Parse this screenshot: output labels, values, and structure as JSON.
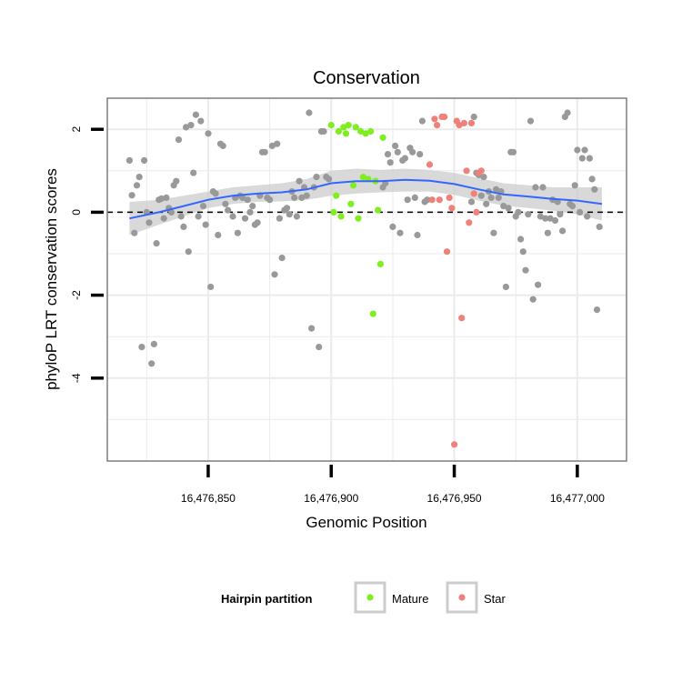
{
  "chart_data": {
    "type": "scatter",
    "title": "Conservation",
    "xlabel": "Genomic Position",
    "ylabel": "phyloP LRT conservation scores",
    "xlim": [
      16476809,
      16477020
    ],
    "ylim": [
      -6.0,
      2.75
    ],
    "x_ticks": [
      16476850,
      16476900,
      16476950,
      16477000
    ],
    "x_tick_labels": [
      "16,476,850",
      "16,476,900",
      "16,476,950",
      "16,477,000"
    ],
    "y_ticks": [
      -4,
      -2,
      0,
      2
    ],
    "y_tick_labels": [
      "-4",
      "-2",
      "0",
      "2"
    ],
    "reference_line": {
      "y": 0,
      "style": "dashed"
    },
    "grid": true,
    "legend": {
      "title": "Hairpin partition",
      "position": "bottom",
      "entries": [
        "Mature",
        "Star"
      ]
    },
    "colors": {
      "other": "#999999",
      "Mature": "#7FEE1F",
      "Star": "#F0807A",
      "smooth": "#3366FF",
      "band": "#CCCCCC",
      "grid": "#EBEBEB",
      "panel_border": "#7F7F7F"
    },
    "series": [
      {
        "name": "Other",
        "color": "#999999",
        "points": [
          [
            16476818,
            1.25
          ],
          [
            16476819,
            0.41
          ],
          [
            16476820,
            -0.5
          ],
          [
            16476821,
            0.65
          ],
          [
            16476822,
            0.85
          ],
          [
            16476823,
            -3.25
          ],
          [
            16476824,
            1.25
          ],
          [
            16476825,
            0.0
          ],
          [
            16476826,
            -0.25
          ],
          [
            16476827,
            -3.65
          ],
          [
            16476828,
            -3.18
          ],
          [
            16476829,
            -0.75
          ],
          [
            16476830,
            0.3
          ],
          [
            16476831,
            0.33
          ],
          [
            16476832,
            -0.15
          ],
          [
            16476833,
            0.35
          ],
          [
            16476834,
            0.1
          ],
          [
            16476835,
            0.0
          ],
          [
            16476836,
            0.65
          ],
          [
            16476837,
            0.75
          ],
          [
            16476838,
            1.75
          ],
          [
            16476839,
            -0.1
          ],
          [
            16476840,
            -0.35
          ],
          [
            16476841,
            2.05
          ],
          [
            16476842,
            -0.95
          ],
          [
            16476843,
            2.1
          ],
          [
            16476844,
            0.95
          ],
          [
            16476845,
            2.35
          ],
          [
            16476846,
            -0.1
          ],
          [
            16476847,
            2.2
          ],
          [
            16476848,
            0.15
          ],
          [
            16476849,
            -0.3
          ],
          [
            16476850,
            1.9
          ],
          [
            16476851,
            -1.8
          ],
          [
            16476852,
            0.5
          ],
          [
            16476853,
            0.45
          ],
          [
            16476854,
            -0.55
          ],
          [
            16476855,
            1.65
          ],
          [
            16476856,
            1.6
          ],
          [
            16476857,
            0.2
          ],
          [
            16476858,
            0.05
          ],
          [
            16476860,
            -0.1
          ],
          [
            16476861,
            0.35
          ],
          [
            16476862,
            -0.5
          ],
          [
            16476863,
            0.4
          ],
          [
            16476864,
            0.35
          ],
          [
            16476865,
            -0.15
          ],
          [
            16476866,
            0.3
          ],
          [
            16476867,
            0.0
          ],
          [
            16476868,
            0.15
          ],
          [
            16476869,
            -0.3
          ],
          [
            16476870,
            -0.25
          ],
          [
            16476871,
            0.4
          ],
          [
            16476872,
            1.45
          ],
          [
            16476873,
            1.45
          ],
          [
            16476874,
            0.35
          ],
          [
            16476875,
            0.3
          ],
          [
            16476876,
            1.6
          ],
          [
            16476877,
            -1.5
          ],
          [
            16476878,
            1.65
          ],
          [
            16476879,
            -0.15
          ],
          [
            16476880,
            -1.1
          ],
          [
            16476881,
            0.05
          ],
          [
            16476882,
            0.1
          ],
          [
            16476883,
            -0.05
          ],
          [
            16476884,
            0.5
          ],
          [
            16476885,
            0.35
          ],
          [
            16476886,
            -0.1
          ],
          [
            16476887,
            0.75
          ],
          [
            16476888,
            0.35
          ],
          [
            16476889,
            0.6
          ],
          [
            16476890,
            0.4
          ],
          [
            16476891,
            2.4
          ],
          [
            16476892,
            -2.8
          ],
          [
            16476893,
            0.6
          ],
          [
            16476894,
            0.85
          ],
          [
            16476895,
            -3.25
          ],
          [
            16476896,
            1.95
          ],
          [
            16476897,
            1.95
          ],
          [
            16476898,
            0.85
          ],
          [
            16476899,
            0.8
          ],
          [
            16476921,
            0.6
          ],
          [
            16476922,
            0.7
          ],
          [
            16476923,
            1.4
          ],
          [
            16476924,
            1.2
          ],
          [
            16476925,
            -0.35
          ],
          [
            16476926,
            1.6
          ],
          [
            16476927,
            1.45
          ],
          [
            16476928,
            -0.5
          ],
          [
            16476929,
            1.25
          ],
          [
            16476930,
            1.3
          ],
          [
            16476931,
            0.3
          ],
          [
            16476932,
            1.55
          ],
          [
            16476933,
            1.45
          ],
          [
            16476934,
            0.35
          ],
          [
            16476935,
            -0.55
          ],
          [
            16476936,
            1.4
          ],
          [
            16476937,
            2.2
          ],
          [
            16476938,
            0.25
          ],
          [
            16476939,
            0.3
          ],
          [
            16476957,
            0.25
          ],
          [
            16476958,
            2.3
          ],
          [
            16476959,
            0.95
          ],
          [
            16476960,
            0.9
          ],
          [
            16476961,
            0.4
          ],
          [
            16476962,
            0.85
          ],
          [
            16476963,
            0.2
          ],
          [
            16476964,
            0.5
          ],
          [
            16476965,
            0.35
          ],
          [
            16476966,
            -0.5
          ],
          [
            16476967,
            0.55
          ],
          [
            16476968,
            0.35
          ],
          [
            16476969,
            0.5
          ],
          [
            16476970,
            0.15
          ],
          [
            16476971,
            -1.8
          ],
          [
            16476972,
            0.1
          ],
          [
            16476973,
            1.45
          ],
          [
            16476974,
            1.45
          ],
          [
            16476975,
            -0.1
          ],
          [
            16476976,
            0.0
          ],
          [
            16476977,
            -0.65
          ],
          [
            16476978,
            -0.95
          ],
          [
            16476979,
            -1.4
          ],
          [
            16476980,
            -0.05
          ],
          [
            16476981,
            2.2
          ],
          [
            16476982,
            -2.1
          ],
          [
            16476983,
            0.6
          ],
          [
            16476984,
            -1.75
          ],
          [
            16476985,
            -0.1
          ],
          [
            16476986,
            0.6
          ],
          [
            16476987,
            -0.15
          ],
          [
            16476988,
            -0.5
          ],
          [
            16476989,
            -0.15
          ],
          [
            16476990,
            0.3
          ],
          [
            16476991,
            -0.2
          ],
          [
            16476992,
            0.25
          ],
          [
            16476993,
            -0.05
          ],
          [
            16476994,
            -0.45
          ],
          [
            16476995,
            2.3
          ],
          [
            16476996,
            2.4
          ],
          [
            16476997,
            0.2
          ],
          [
            16476998,
            0.15
          ],
          [
            16476999,
            0.65
          ],
          [
            16477000,
            1.5
          ],
          [
            16477001,
            0.0
          ],
          [
            16477002,
            1.3
          ],
          [
            16477003,
            1.5
          ],
          [
            16477004,
            -0.1
          ],
          [
            16477005,
            1.3
          ],
          [
            16477006,
            0.8
          ],
          [
            16477007,
            0.55
          ],
          [
            16477008,
            -2.35
          ],
          [
            16477009,
            -0.35
          ]
        ]
      },
      {
        "name": "Mature",
        "color": "#7FEE1F",
        "points": [
          [
            16476900,
            2.1
          ],
          [
            16476901,
            0.0
          ],
          [
            16476902,
            0.4
          ],
          [
            16476903,
            1.95
          ],
          [
            16476904,
            -0.1
          ],
          [
            16476905,
            2.05
          ],
          [
            16476906,
            1.9
          ],
          [
            16476907,
            2.1
          ],
          [
            16476908,
            0.2
          ],
          [
            16476909,
            0.65
          ],
          [
            16476910,
            2.05
          ],
          [
            16476911,
            -0.15
          ],
          [
            16476912,
            1.95
          ],
          [
            16476913,
            0.85
          ],
          [
            16476914,
            1.9
          ],
          [
            16476915,
            0.8
          ],
          [
            16476916,
            1.95
          ],
          [
            16476917,
            -2.45
          ],
          [
            16476918,
            0.75
          ],
          [
            16476919,
            0.05
          ],
          [
            16476920,
            -1.25
          ],
          [
            16476921,
            1.8
          ]
        ]
      },
      {
        "name": "Star",
        "color": "#F0807A",
        "points": [
          [
            16476940,
            1.15
          ],
          [
            16476941,
            0.3
          ],
          [
            16476942,
            2.25
          ],
          [
            16476943,
            2.1
          ],
          [
            16476944,
            0.3
          ],
          [
            16476945,
            2.3
          ],
          [
            16476946,
            2.3
          ],
          [
            16476947,
            -0.95
          ],
          [
            16476948,
            0.35
          ],
          [
            16476949,
            0.1
          ],
          [
            16476950,
            -5.6
          ],
          [
            16476951,
            2.2
          ],
          [
            16476952,
            2.1
          ],
          [
            16476953,
            -2.55
          ],
          [
            16476954,
            2.15
          ],
          [
            16476955,
            1.0
          ],
          [
            16476956,
            -0.25
          ],
          [
            16476957,
            2.15
          ],
          [
            16476958,
            0.45
          ],
          [
            16476959,
            0.0
          ],
          [
            16476960,
            0.95
          ],
          [
            16476961,
            1.0
          ]
        ]
      }
    ],
    "smooth": {
      "color": "#3366FF",
      "points": [
        [
          16476818,
          -0.15
        ],
        [
          16476830,
          0.0
        ],
        [
          16476840,
          0.15
        ],
        [
          16476850,
          0.3
        ],
        [
          16476860,
          0.4
        ],
        [
          16476870,
          0.45
        ],
        [
          16476880,
          0.48
        ],
        [
          16476890,
          0.55
        ],
        [
          16476900,
          0.7
        ],
        [
          16476910,
          0.75
        ],
        [
          16476920,
          0.75
        ],
        [
          16476930,
          0.78
        ],
        [
          16476940,
          0.76
        ],
        [
          16476950,
          0.68
        ],
        [
          16476960,
          0.55
        ],
        [
          16476970,
          0.43
        ],
        [
          16476980,
          0.38
        ],
        [
          16476990,
          0.32
        ],
        [
          16477000,
          0.28
        ],
        [
          16477010,
          0.2
        ]
      ]
    },
    "band": {
      "color": "#CCCCCC",
      "upper": [
        [
          16476818,
          0.25
        ],
        [
          16476830,
          0.3
        ],
        [
          16476840,
          0.4
        ],
        [
          16476850,
          0.5
        ],
        [
          16476860,
          0.6
        ],
        [
          16476870,
          0.65
        ],
        [
          16476880,
          0.7
        ],
        [
          16476890,
          0.8
        ],
        [
          16476900,
          1.0
        ],
        [
          16476910,
          1.05
        ],
        [
          16476920,
          1.02
        ],
        [
          16476930,
          1.05
        ],
        [
          16476940,
          1.02
        ],
        [
          16476950,
          0.95
        ],
        [
          16476960,
          0.82
        ],
        [
          16476970,
          0.7
        ],
        [
          16476980,
          0.65
        ],
        [
          16476990,
          0.6
        ],
        [
          16477000,
          0.6
        ],
        [
          16477010,
          0.6
        ]
      ],
      "lower": [
        [
          16476818,
          -0.55
        ],
        [
          16476830,
          -0.3
        ],
        [
          16476840,
          -0.1
        ],
        [
          16476850,
          0.1
        ],
        [
          16476860,
          0.2
        ],
        [
          16476870,
          0.25
        ],
        [
          16476880,
          0.26
        ],
        [
          16476890,
          0.3
        ],
        [
          16476900,
          0.4
        ],
        [
          16476910,
          0.45
        ],
        [
          16476920,
          0.48
        ],
        [
          16476930,
          0.5
        ],
        [
          16476940,
          0.5
        ],
        [
          16476950,
          0.42
        ],
        [
          16476960,
          0.28
        ],
        [
          16476970,
          0.16
        ],
        [
          16476980,
          0.1
        ],
        [
          16476990,
          0.04
        ],
        [
          16477000,
          -0.05
        ],
        [
          16477010,
          -0.2
        ]
      ]
    }
  }
}
